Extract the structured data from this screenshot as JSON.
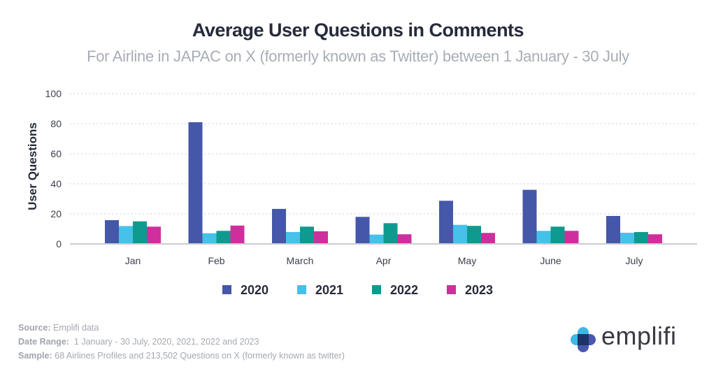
{
  "header": {
    "title": "Average User Questions in Comments",
    "subtitle": "For Airline in JAPAC on X (formerly known as Twitter) between 1 January - 30 July"
  },
  "chart_data": {
    "type": "bar",
    "title": "Average User Questions in Comments",
    "subtitle": "For Airline in JAPAC on X (formerly known as Twitter) between 1 January - 30 July",
    "xlabel": "",
    "ylabel": "User Questions",
    "ylim": [
      0,
      100
    ],
    "yticks": [
      0,
      20,
      40,
      60,
      80,
      100
    ],
    "grid": true,
    "legend_position": "bottom-center",
    "categories": [
      "Jan",
      "Feb",
      "March",
      "Apr",
      "May",
      "June",
      "July"
    ],
    "series": [
      {
        "name": "2020",
        "color": "#4457a8",
        "values": [
          15.8,
          81,
          23.3,
          18,
          28.7,
          36,
          18.6
        ]
      },
      {
        "name": "2021",
        "color": "#45c1ea",
        "values": [
          11.9,
          7.1,
          7.9,
          6.2,
          12.7,
          8.7,
          7.4
        ]
      },
      {
        "name": "2022",
        "color": "#0f9a8f",
        "values": [
          15,
          8.7,
          11.5,
          13.8,
          12,
          11.5,
          7.9
        ]
      },
      {
        "name": "2023",
        "color": "#cf2f9c",
        "values": [
          11.5,
          12.2,
          8.4,
          6.4,
          7.3,
          8.7,
          6.4
        ]
      }
    ]
  },
  "footer": {
    "source_label": "Source:",
    "source_value": "Emplifi data",
    "date_label": "Date Range:",
    "date_value": "1 January - 30 July, 2020, 2021, 2022 and 2023",
    "sample_label": "Sample:",
    "sample_value": "68 Airlines Profiles and 213,502 Questions on X (formerly known as twitter)"
  },
  "logo": {
    "text": "emplifi",
    "icon": "emplifi-logo-icon",
    "colors": {
      "light": "#3db7e6",
      "dark": "#1c3565",
      "mid": "#4a57b0"
    }
  }
}
